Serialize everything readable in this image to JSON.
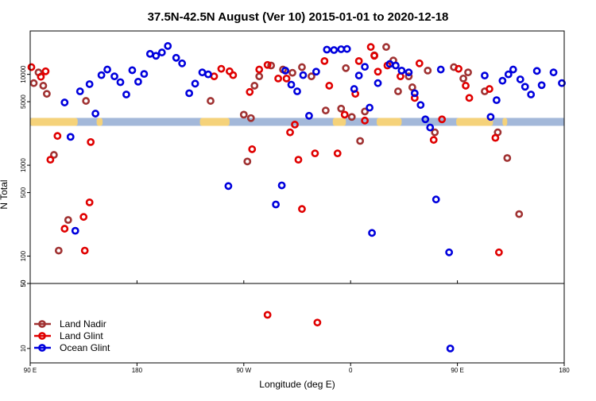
{
  "chart_data": {
    "type": "scatter",
    "title": "37.5N-42.5N August (Ver 10)   2015-01-01 to 2020-12-18",
    "xlabel": "Longitude (deg E)",
    "ylabel": "N Total",
    "x_ticks": [
      {
        "value": 90,
        "label": "90 E"
      },
      {
        "value": 180,
        "label": "180"
      },
      {
        "value": 270,
        "label": "90 W"
      },
      {
        "value": 360,
        "label": "0"
      },
      {
        "value": 450,
        "label": "90 E"
      },
      {
        "value": 540,
        "label": "180"
      }
    ],
    "xlim": [
      90,
      540
    ],
    "y_scale": "log",
    "upper_ylim": [
      50,
      30000
    ],
    "upper_y_ticks": [
      {
        "value": 50,
        "label": "50"
      },
      {
        "value": 100,
        "label": "100"
      },
      {
        "value": 500,
        "label": "500"
      },
      {
        "value": 1000,
        "label": "1000"
      },
      {
        "value": 5000,
        "label": "5000"
      },
      {
        "value": 10000,
        "label": "10000"
      }
    ],
    "lower_ylim": [
      7,
      50
    ],
    "lower_y_ticks": [
      {
        "value": 10,
        "label": "10"
      },
      {
        "value": 50,
        "label": "50"
      }
    ],
    "legend_position": "bottom-left",
    "band": {
      "y": 3000,
      "land_color": "#f5d27a",
      "ocean_color": "#a3b8d9"
    },
    "band_land_ranges": [
      [
        90,
        130
      ],
      [
        146,
        151
      ],
      [
        233,
        258
      ],
      [
        345,
        356
      ],
      [
        382,
        403
      ],
      [
        449,
        480
      ],
      [
        488,
        492
      ]
    ],
    "series": [
      {
        "name": "Land Nadir",
        "color": "#a03232",
        "points": [
          [
            93,
            8000
          ],
          [
            97,
            10500
          ],
          [
            101,
            7500
          ],
          [
            104,
            6100
          ],
          [
            110,
            1300
          ],
          [
            114,
            115
          ],
          [
            122,
            250
          ],
          [
            137,
            5100
          ],
          [
            242,
            5100
          ],
          [
            270,
            3600
          ],
          [
            273,
            1100
          ],
          [
            276,
            3300
          ],
          [
            279,
            7500
          ],
          [
            283,
            9500
          ],
          [
            293,
            12500
          ],
          [
            303,
            11300
          ],
          [
            311,
            10400
          ],
          [
            319,
            12000
          ],
          [
            327,
            9500
          ],
          [
            339,
            4000
          ],
          [
            352,
            4200
          ],
          [
            356,
            11700
          ],
          [
            361,
            3400
          ],
          [
            368,
            1850
          ],
          [
            372,
            3900
          ],
          [
            380,
            16200
          ],
          [
            390,
            20000
          ],
          [
            396,
            14200
          ],
          [
            400,
            6500
          ],
          [
            409,
            9500
          ],
          [
            412,
            7200
          ],
          [
            425,
            11000
          ],
          [
            431,
            2300
          ],
          [
            447,
            12000
          ],
          [
            455,
            9000
          ],
          [
            459,
            10500
          ],
          [
            473,
            6500
          ],
          [
            484,
            2300
          ],
          [
            492,
            1200
          ],
          [
            502,
            290
          ]
        ]
      },
      {
        "name": "Land Glint",
        "color": "#e00000",
        "points": [
          [
            91,
            12000
          ],
          [
            99,
            9400
          ],
          [
            103,
            10800
          ],
          [
            107,
            1150
          ],
          [
            113,
            2100
          ],
          [
            119,
            200
          ],
          [
            135,
            270
          ],
          [
            136,
            115
          ],
          [
            140,
            390
          ],
          [
            141,
            1800
          ],
          [
            245,
            9500
          ],
          [
            251,
            11500
          ],
          [
            258,
            10800
          ],
          [
            261,
            9800
          ],
          [
            275,
            6400
          ],
          [
            277,
            1500
          ],
          [
            283,
            11300
          ],
          [
            290,
            12700
          ],
          [
            299,
            9000
          ],
          [
            306,
            9000
          ],
          [
            309,
            2300
          ],
          [
            313,
            2800
          ],
          [
            316,
            1150
          ],
          [
            319,
            330
          ],
          [
            330,
            1350
          ],
          [
            338,
            14000
          ],
          [
            342,
            7500
          ],
          [
            349,
            1350
          ],
          [
            355,
            3600
          ],
          [
            364,
            6100
          ],
          [
            367,
            14000
          ],
          [
            372,
            3100
          ],
          [
            377,
            20000
          ],
          [
            380,
            16000
          ],
          [
            383,
            10700
          ],
          [
            391,
            12500
          ],
          [
            402,
            9500
          ],
          [
            414,
            5500
          ],
          [
            418,
            13200
          ],
          [
            430,
            1900
          ],
          [
            437,
            3200
          ],
          [
            451,
            11500
          ],
          [
            457,
            7500
          ],
          [
            460,
            5500
          ],
          [
            477,
            6900
          ],
          [
            482,
            2000
          ],
          [
            485,
            110
          ]
        ]
      },
      {
        "name": "Ocean Glint",
        "color": "#0000dd",
        "points": [
          [
            119,
            4900
          ],
          [
            124,
            2050
          ],
          [
            128,
            190
          ],
          [
            132,
            6500
          ],
          [
            140,
            7800
          ],
          [
            145,
            3700
          ],
          [
            150,
            9800
          ],
          [
            155,
            11300
          ],
          [
            161,
            9500
          ],
          [
            166,
            8200
          ],
          [
            171,
            6000
          ],
          [
            176,
            11100
          ],
          [
            181,
            8300
          ],
          [
            186,
            10100
          ],
          [
            191,
            16800
          ],
          [
            196,
            16000
          ],
          [
            201,
            17400
          ],
          [
            206,
            20500
          ],
          [
            213,
            15200
          ],
          [
            218,
            13200
          ],
          [
            224,
            6200
          ],
          [
            229,
            7900
          ],
          [
            235,
            10500
          ],
          [
            240,
            10000
          ],
          [
            257,
            590
          ],
          [
            297,
            370
          ],
          [
            302,
            600
          ],
          [
            305,
            11000
          ],
          [
            310,
            7700
          ],
          [
            315,
            6500
          ],
          [
            320,
            9800
          ],
          [
            325,
            3500
          ],
          [
            331,
            10700
          ],
          [
            340,
            18700
          ],
          [
            346,
            18500
          ],
          [
            352,
            18900
          ],
          [
            357,
            19000
          ],
          [
            363,
            6900
          ],
          [
            367,
            9700
          ],
          [
            372,
            12100
          ],
          [
            376,
            4300
          ],
          [
            378,
            180
          ],
          [
            383,
            8000
          ],
          [
            393,
            13000
          ],
          [
            398,
            12500
          ],
          [
            403,
            11000
          ],
          [
            409,
            10500
          ],
          [
            414,
            6200
          ],
          [
            419,
            4600
          ],
          [
            423,
            3200
          ],
          [
            427,
            2600
          ],
          [
            432,
            420
          ],
          [
            436,
            11300
          ],
          [
            443,
            110
          ],
          [
            473,
            9700
          ],
          [
            478,
            3400
          ],
          [
            483,
            5200
          ],
          [
            488,
            8500
          ],
          [
            493,
            10000
          ],
          [
            497,
            11300
          ],
          [
            503,
            8800
          ],
          [
            507,
            7300
          ],
          [
            512,
            6000
          ],
          [
            517,
            10900
          ],
          [
            521,
            7600
          ],
          [
            531,
            10500
          ],
          [
            538,
            8000
          ]
        ]
      }
    ],
    "lower_points": [
      {
        "series": "Land Glint",
        "x": 290,
        "y": 23
      },
      {
        "series": "Land Glint",
        "x": 332,
        "y": 19
      },
      {
        "series": "Ocean Glint",
        "x": 444,
        "y": 10
      }
    ]
  }
}
